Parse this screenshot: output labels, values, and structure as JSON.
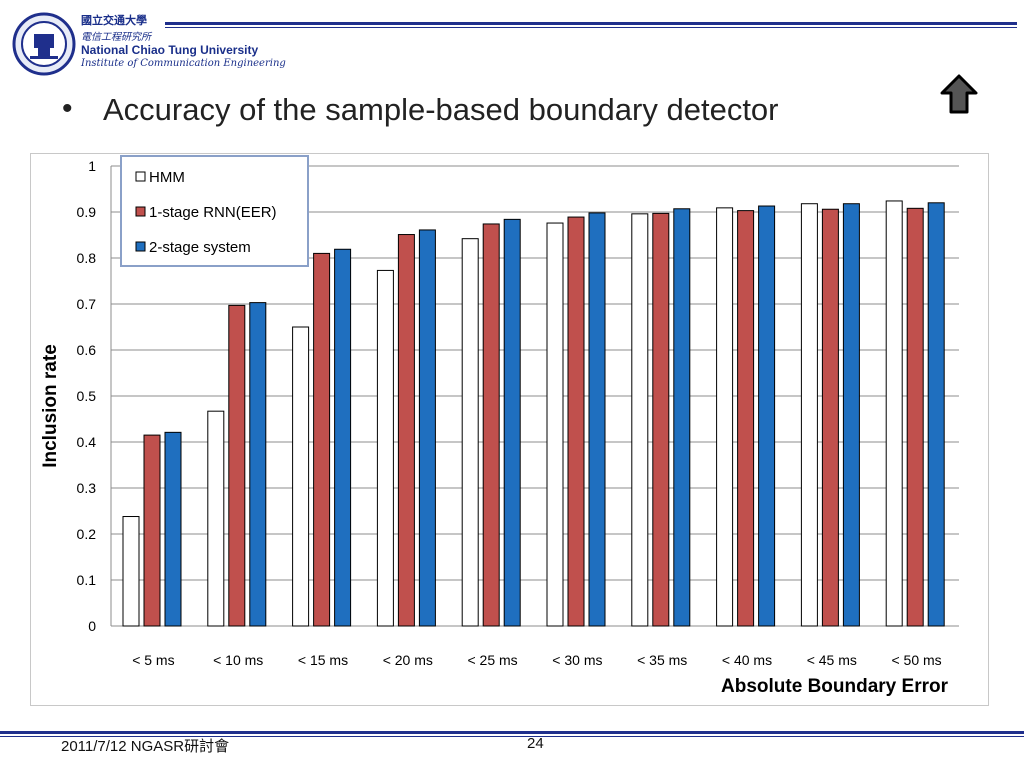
{
  "header": {
    "university_cn": "國立交通大學",
    "institute_cn": "電信工程研究所",
    "university_en": "National Chiao Tung University",
    "institute_en": "Institute of Communication Engineering"
  },
  "slide": {
    "bullet": "•",
    "title": "Accuracy of the sample-based boundary detector",
    "nav_icon": "up-arrow-icon"
  },
  "footer": {
    "left": "2011/7/12 NGASR研討會",
    "page": "24"
  },
  "colors": {
    "hmm": "#ffffff",
    "rnn": "#c0504d",
    "system": "#1f6fbf",
    "brand": "#1f2f8c"
  },
  "chart_data": {
    "type": "bar",
    "title": "",
    "xlabel": "Absolute Boundary Error",
    "ylabel": "Inclusion rate",
    "ylim": [
      0,
      1
    ],
    "yticks": [
      "0",
      "0.1",
      "0.2",
      "0.3",
      "0.4",
      "0.5",
      "0.6",
      "0.7",
      "0.8",
      "0.9",
      "1"
    ],
    "grid": true,
    "legend_position": "top-left",
    "categories": [
      "< 5 ms",
      "< 10 ms",
      "< 15 ms",
      "< 20 ms",
      "< 25 ms",
      "< 30 ms",
      "< 35 ms",
      "< 40 ms",
      "< 45 ms",
      "< 50 ms"
    ],
    "series": [
      {
        "name": "HMM",
        "values": [
          0.238,
          0.467,
          0.65,
          0.773,
          0.842,
          0.876,
          0.896,
          0.909,
          0.918,
          0.924
        ]
      },
      {
        "name": "1-stage RNN(EER)",
        "values": [
          0.415,
          0.697,
          0.81,
          0.851,
          0.874,
          0.889,
          0.897,
          0.903,
          0.906,
          0.908
        ]
      },
      {
        "name": "2-stage system",
        "values": [
          0.421,
          0.703,
          0.819,
          0.861,
          0.884,
          0.898,
          0.907,
          0.913,
          0.918,
          0.92
        ]
      }
    ]
  }
}
